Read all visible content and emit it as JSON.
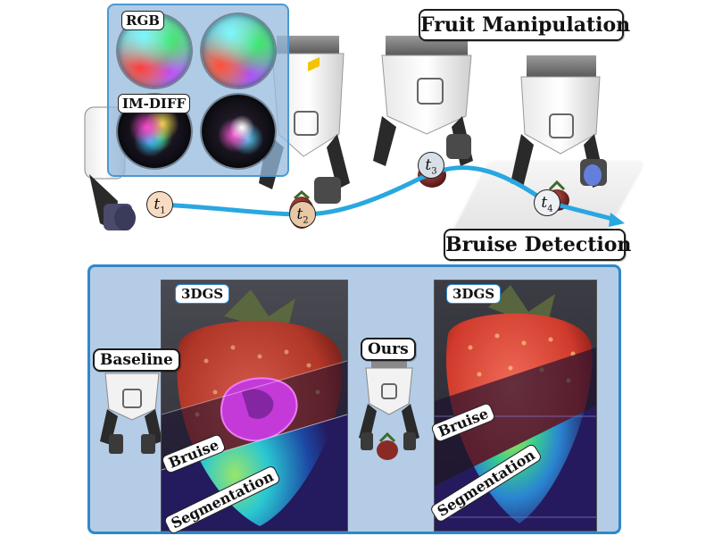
{
  "top": {
    "title_manipulation": "Fruit Manipulation",
    "title_detection": "Bruise Detection",
    "sensor_labels": {
      "rgb": "RGB",
      "imdiff": "IM-DIFF"
    },
    "timesteps": [
      {
        "letter": "t",
        "index": "1"
      },
      {
        "letter": "t",
        "index": "2"
      },
      {
        "letter": "t",
        "index": "3"
      },
      {
        "letter": "t",
        "index": "4"
      }
    ],
    "trajectory_color": "#29a7e0"
  },
  "bottom": {
    "baseline_label": "Baseline",
    "ours_label": "Ours",
    "left_view": {
      "method": "3DGS",
      "bruise": "Bruise",
      "segmentation": "Segmentation"
    },
    "right_view": {
      "method": "3DGS",
      "bruise": "Bruise",
      "segmentation": "Segmentation"
    },
    "panel_border_color": "#2f88c9"
  }
}
